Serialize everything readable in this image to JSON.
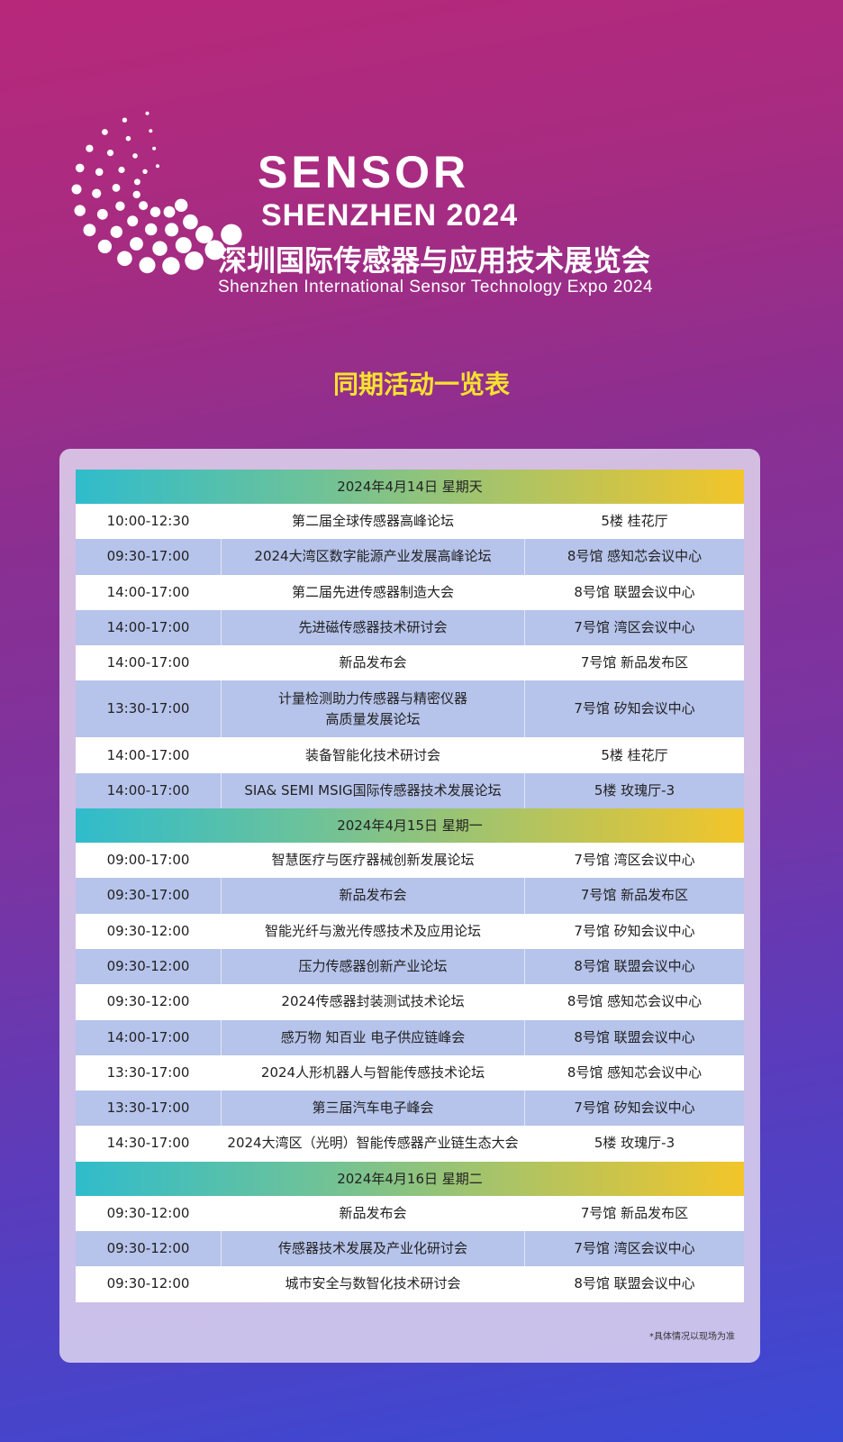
{
  "logo": {
    "line1": "SENSOR",
    "line2": "SHENZHEN 2024",
    "cn": "深圳国际传感器与应用技术展览会",
    "en": "Shenzhen International Sensor Technology Expo 2024"
  },
  "title": "同期活动一览表",
  "days": [
    {
      "date": "2024年4月14日 星期天",
      "events": [
        {
          "time": "10:00-12:30",
          "name": "第二届全球传感器高峰论坛",
          "place": "5楼 桂花厅"
        },
        {
          "time": "09:30-17:00",
          "name": "2024大湾区数字能源产业发展高峰论坛",
          "place": "8号馆 感知芯会议中心"
        },
        {
          "time": "14:00-17:00",
          "name": "第二届先进传感器制造大会",
          "place": "8号馆 联盟会议中心"
        },
        {
          "time": "14:00-17:00",
          "name": "先进磁传感器技术研讨会",
          "place": "7号馆 湾区会议中心"
        },
        {
          "time": "14:00-17:00",
          "name": "新品发布会",
          "place": "7号馆 新品发布区"
        },
        {
          "time": "13:30-17:00",
          "name": "计量检测助力传感器与精密仪器\n高质量发展论坛",
          "place": "7号馆 矽知会议中心"
        },
        {
          "time": "14:00-17:00",
          "name": "装备智能化技术研讨会",
          "place": "5楼 桂花厅"
        },
        {
          "time": "14:00-17:00",
          "name": "SIA& SEMI MSIG国际传感器技术发展论坛",
          "place": "5楼 玫瑰厅-3"
        }
      ]
    },
    {
      "date": "2024年4月15日 星期一",
      "events": [
        {
          "time": "09:00-17:00",
          "name": "智慧医疗与医疗器械创新发展论坛",
          "place": "7号馆 湾区会议中心"
        },
        {
          "time": "09:30-17:00",
          "name": "新品发布会",
          "place": "7号馆 新品发布区"
        },
        {
          "time": "09:30-12:00",
          "name": "智能光纤与激光传感技术及应用论坛",
          "place": "7号馆 矽知会议中心"
        },
        {
          "time": "09:30-12:00",
          "name": "压力传感器创新产业论坛",
          "place": "8号馆 联盟会议中心"
        },
        {
          "time": "09:30-12:00",
          "name": "2024传感器封装测试技术论坛",
          "place": "8号馆 感知芯会议中心"
        },
        {
          "time": "14:00-17:00",
          "name": "感万物 知百业 电子供应链峰会",
          "place": "8号馆 联盟会议中心"
        },
        {
          "time": "13:30-17:00",
          "name": "2024人形机器人与智能传感技术论坛",
          "place": "8号馆 感知芯会议中心"
        },
        {
          "time": "13:30-17:00",
          "name": "第三届汽车电子峰会",
          "place": "7号馆 矽知会议中心"
        },
        {
          "time": "14:30-17:00",
          "name": "2024大湾区（光明）智能传感器产业链生态大会",
          "place": "5楼 玫瑰厅-3"
        }
      ]
    },
    {
      "date": "2024年4月16日 星期二",
      "events": [
        {
          "time": "09:30-12:00",
          "name": "新品发布会",
          "place": "7号馆 新品发布区"
        },
        {
          "time": "09:30-12:00",
          "name": "传感器技术发展及产业化研讨会",
          "place": "7号馆 湾区会议中心"
        },
        {
          "time": "09:30-12:00",
          "name": "城市安全与数智化技术研讨会",
          "place": "8号馆 联盟会议中心"
        }
      ]
    }
  ],
  "note": "*具体情况以现场为准"
}
